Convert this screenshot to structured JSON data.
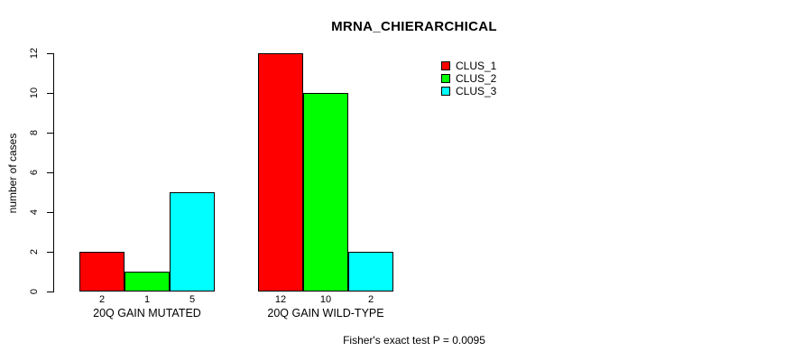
{
  "title": "MRNA_CHIERARCHICAL",
  "footer": "Fisher's exact test P = 0.0095",
  "colors": {
    "background": "#ffffff",
    "axis": "#000000",
    "bar_border": "#000000"
  },
  "chart_data": {
    "type": "bar",
    "title": "MRNA_CHIERARCHICAL",
    "xlabel": "",
    "ylabel": "number of cases",
    "categories": [
      "20Q GAIN MUTATED",
      "20Q GAIN WILD-TYPE"
    ],
    "series": [
      {
        "name": "CLUS_1",
        "color": "#ff0000",
        "values": [
          2,
          12
        ]
      },
      {
        "name": "CLUS_2",
        "color": "#00ff00",
        "values": [
          1,
          10
        ]
      },
      {
        "name": "CLUS_3",
        "color": "#00ffff",
        "values": [
          5,
          2
        ]
      }
    ],
    "bar_value_labels": [
      [
        "2",
        "1",
        "5"
      ],
      [
        "12",
        "10",
        "2"
      ]
    ],
    "yticks": [
      "0",
      "2",
      "4",
      "6",
      "8",
      "10",
      "12"
    ],
    "ylim": [
      0,
      12
    ],
    "grid": false,
    "legend_position": "top-right",
    "legend_entries": [
      "CLUS_1",
      "CLUS_2",
      "CLUS_3"
    ],
    "annotation": "Fisher's exact test P = 0.0095"
  }
}
